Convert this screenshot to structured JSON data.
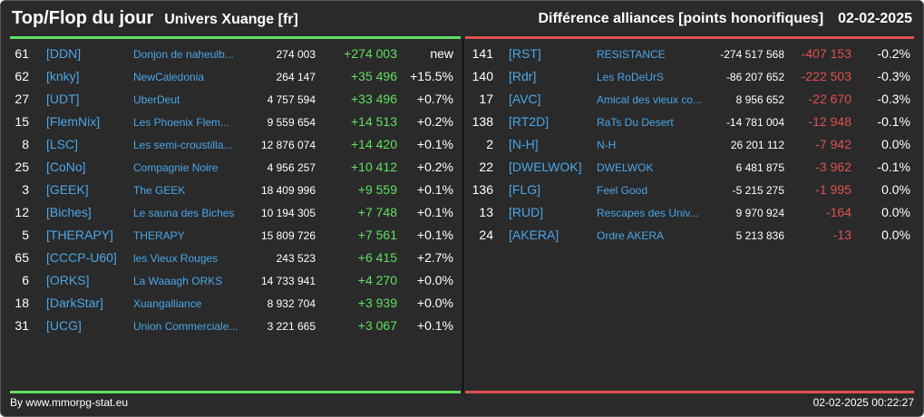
{
  "header": {
    "title": "Top/Flop du jour",
    "subtitle": "Univers Xuange [fr]",
    "right_title": "Différence alliances [points honorifiques]",
    "date": "02-02-2025"
  },
  "colors": {
    "positive": "#5fe05f",
    "negative": "#e0504f",
    "link": "#4aa6e8"
  },
  "top": [
    {
      "rank": "61",
      "tag": "[DDN]",
      "name": "Donjon de naheulb...",
      "points": "274 003",
      "diff": "+274 003",
      "pct": "new"
    },
    {
      "rank": "62",
      "tag": "[knky]",
      "name": "NewCaledonia",
      "points": "264 147",
      "diff": "+35 496",
      "pct": "+15.5%"
    },
    {
      "rank": "27",
      "tag": "[UDT]",
      "name": "UberDeut",
      "points": "4 757 594",
      "diff": "+33 496",
      "pct": "+0.7%"
    },
    {
      "rank": "15",
      "tag": "[FlemNix]",
      "name": "Les Phoenix Flem...",
      "points": "9 559 654",
      "diff": "+14 513",
      "pct": "+0.2%"
    },
    {
      "rank": "8",
      "tag": "[LSC]",
      "name": "Les semi-croustilla...",
      "points": "12 876 074",
      "diff": "+14 420",
      "pct": "+0.1%"
    },
    {
      "rank": "25",
      "tag": "[CoNo]",
      "name": "Compagnie Noire",
      "points": "4 956 257",
      "diff": "+10 412",
      "pct": "+0.2%"
    },
    {
      "rank": "3",
      "tag": "[GEEK]",
      "name": "The GEEK",
      "points": "18 409 996",
      "diff": "+9 559",
      "pct": "+0.1%"
    },
    {
      "rank": "12",
      "tag": "[Biches]",
      "name": "Le sauna des Biches",
      "points": "10 194 305",
      "diff": "+7 748",
      "pct": "+0.1%"
    },
    {
      "rank": "5",
      "tag": "[THERAPY]",
      "name": "THERAPY",
      "points": "15 809 726",
      "diff": "+7 561",
      "pct": "+0.1%"
    },
    {
      "rank": "65",
      "tag": "[CCCP-U60]",
      "name": "les Vieux Rouges",
      "points": "243 523",
      "diff": "+6 415",
      "pct": "+2.7%"
    },
    {
      "rank": "6",
      "tag": "[ORKS]",
      "name": "La Waaagh ORKS",
      "points": "14 733 941",
      "diff": "+4 270",
      "pct": "+0.0%"
    },
    {
      "rank": "18",
      "tag": "[DarkStar]",
      "name": "Xuangalliance",
      "points": "8 932 704",
      "diff": "+3 939",
      "pct": "+0.0%"
    },
    {
      "rank": "31",
      "tag": "[UCG]",
      "name": "Union Commerciale...",
      "points": "3 221 665",
      "diff": "+3 067",
      "pct": "+0.1%"
    }
  ],
  "flop": [
    {
      "rank": "141",
      "tag": "[RST]",
      "name": "RESISTANCE",
      "points": "-274 517 568",
      "diff": "-407 153",
      "pct": "-0.2%"
    },
    {
      "rank": "140",
      "tag": "[Rdr]",
      "name": "Les RoDeUrS",
      "points": "-86 207 652",
      "diff": "-222 503",
      "pct": "-0.3%"
    },
    {
      "rank": "17",
      "tag": "[AVC]",
      "name": "Amical des vieux co...",
      "points": "8 956 652",
      "diff": "-22 670",
      "pct": "-0.3%"
    },
    {
      "rank": "138",
      "tag": "[RT2D]",
      "name": "RaTs Du Desert",
      "points": "-14 781 004",
      "diff": "-12 948",
      "pct": "-0.1%"
    },
    {
      "rank": "2",
      "tag": "[N-H]",
      "name": "N-H",
      "points": "26 201 112",
      "diff": "-7 942",
      "pct": "0.0%"
    },
    {
      "rank": "22",
      "tag": "[DWELWOK]",
      "name": "DWELWOK",
      "points": "6 481 875",
      "diff": "-3 962",
      "pct": "-0.1%"
    },
    {
      "rank": "136",
      "tag": "[FLG]",
      "name": "Feel Good",
      "points": "-5 215 275",
      "diff": "-1 995",
      "pct": "0.0%"
    },
    {
      "rank": "13",
      "tag": "[RUD]",
      "name": "Rescapes des Univ...",
      "points": "9 970 924",
      "diff": "-164",
      "pct": "0.0%"
    },
    {
      "rank": "24",
      "tag": "[AKERA]",
      "name": "Ordre AKERA",
      "points": "5 213 836",
      "diff": "-13",
      "pct": "0.0%"
    }
  ],
  "footer": {
    "source": "By www.mmorpg-stat.eu",
    "timestamp": "02-02-2025 00:22:27"
  }
}
